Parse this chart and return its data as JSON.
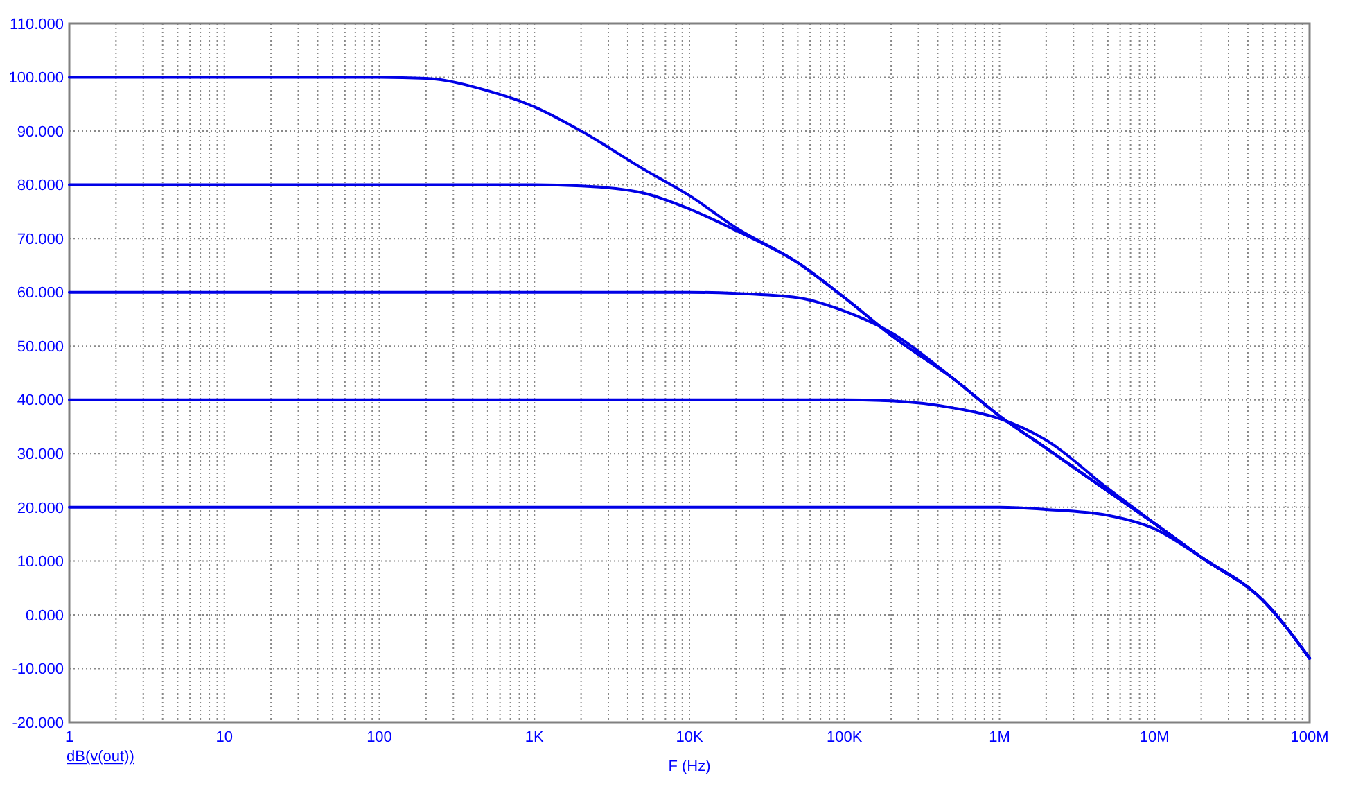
{
  "chart_data": {
    "type": "line",
    "xlabel": "F (Hz)",
    "annotations": [
      "dB(v(out))"
    ],
    "log": "x",
    "grid": true,
    "xlim": [
      1,
      100000000
    ],
    "ylim": [
      -20,
      110
    ],
    "xticks": [
      {
        "value": 1,
        "label": "1"
      },
      {
        "value": 10,
        "label": "10"
      },
      {
        "value": 100,
        "label": "100"
      },
      {
        "value": 1000,
        "label": "1K"
      },
      {
        "value": 10000,
        "label": "10K"
      },
      {
        "value": 100000,
        "label": "100K"
      },
      {
        "value": 1000000,
        "label": "1M"
      },
      {
        "value": 10000000,
        "label": "10M"
      },
      {
        "value": 100000000,
        "label": "100M"
      }
    ],
    "yticks": [
      {
        "value": -20,
        "label": "-20.000"
      },
      {
        "value": -10,
        "label": "-10.000"
      },
      {
        "value": 0,
        "label": "0.000"
      },
      {
        "value": 10,
        "label": "10.000"
      },
      {
        "value": 20,
        "label": "20.000"
      },
      {
        "value": 30,
        "label": "30.000"
      },
      {
        "value": 40,
        "label": "40.000"
      },
      {
        "value": 50,
        "label": "50.000"
      },
      {
        "value": 60,
        "label": "60.000"
      },
      {
        "value": 70,
        "label": "70.000"
      },
      {
        "value": 80,
        "label": "80.000"
      },
      {
        "value": 90,
        "label": "90.000"
      },
      {
        "value": 100,
        "label": "100.000"
      },
      {
        "value": 110,
        "label": "110.000"
      }
    ],
    "series": [
      {
        "color": "#0000e6",
        "x": [
          1,
          100,
          200,
          500,
          1000,
          2000,
          5000,
          10000,
          20000,
          50000,
          100000,
          200000,
          500000,
          1000000,
          2000000,
          5000000,
          10000000,
          20000000,
          50000000,
          100000000
        ],
        "values": [
          100,
          100,
          99.8,
          97.5,
          94.5,
          90,
          83,
          78,
          72,
          65.5,
          59,
          52,
          44,
          37,
          31,
          23,
          17,
          10.7,
          2.7,
          -8.1
        ]
      },
      {
        "color": "#0000e6",
        "x": [
          1,
          1000,
          2000,
          5000,
          10000,
          20000,
          50000,
          100000,
          200000,
          500000,
          1000000,
          2000000,
          5000000,
          10000000,
          20000000,
          50000000,
          100000000
        ],
        "values": [
          80,
          80,
          79.8,
          78.5,
          75.5,
          71.5,
          65.5,
          59,
          52,
          44,
          37,
          31,
          23,
          17,
          10.7,
          2.7,
          -8.1
        ]
      },
      {
        "color": "#0000e6",
        "x": [
          1,
          10000,
          20000,
          50000,
          100000,
          200000,
          500000,
          1000000,
          2000000,
          5000000,
          10000000,
          20000000,
          50000000,
          100000000
        ],
        "values": [
          60,
          60,
          59.8,
          59,
          56.5,
          52.5,
          44,
          37,
          31,
          23,
          17,
          10.7,
          2.7,
          -8.1
        ]
      },
      {
        "color": "#0000e6",
        "x": [
          1,
          100000,
          200000,
          500000,
          1000000,
          2000000,
          5000000,
          10000000,
          20000000,
          50000000,
          100000000
        ],
        "values": [
          40,
          40,
          39.8,
          38.5,
          36.5,
          32.5,
          23.5,
          17,
          10.7,
          2.7,
          -8.1
        ]
      },
      {
        "color": "#0000e6",
        "x": [
          1,
          1000000,
          2000000,
          5000000,
          10000000,
          20000000,
          50000000,
          100000000
        ],
        "values": [
          20,
          20,
          19.6,
          18.5,
          16,
          10.7,
          2.7,
          -8.1
        ]
      }
    ]
  }
}
